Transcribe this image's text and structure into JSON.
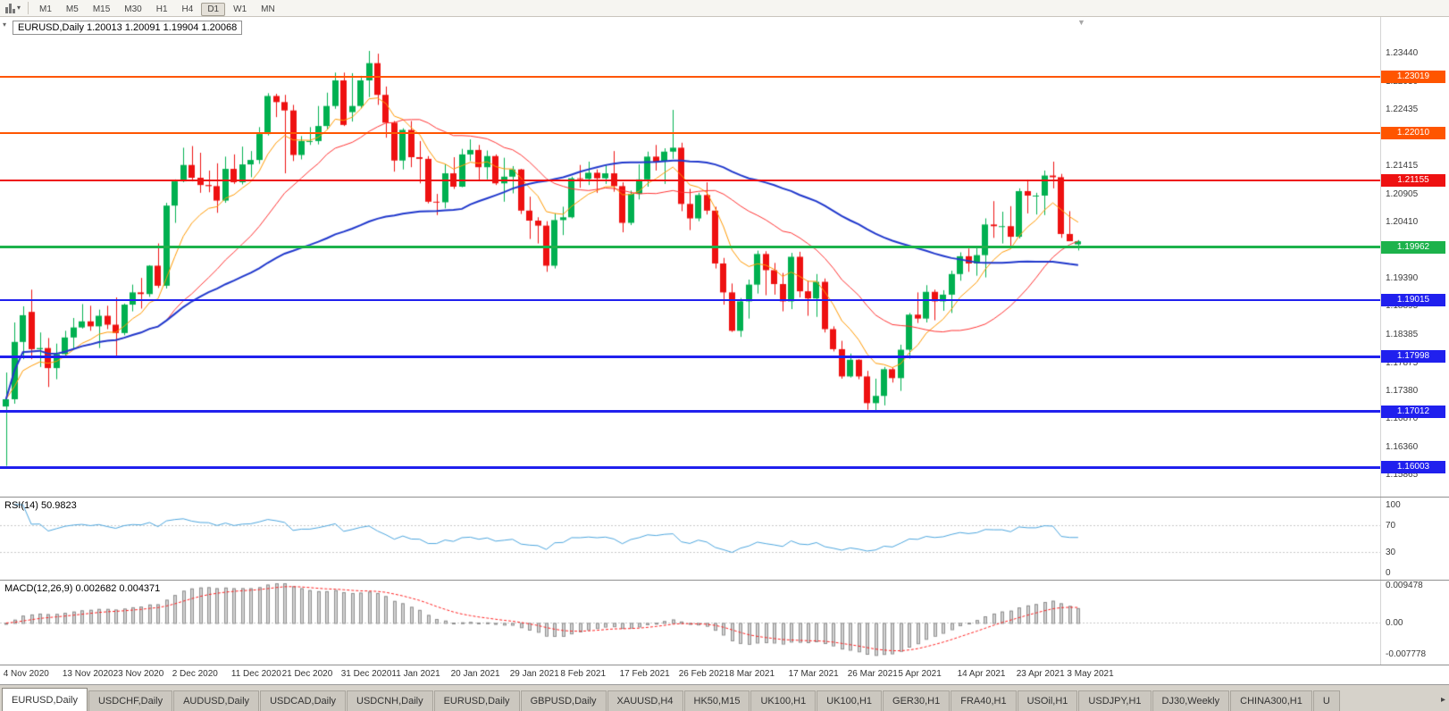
{
  "toolbar": {
    "timeframes": [
      "M1",
      "M5",
      "M15",
      "M30",
      "H1",
      "H4",
      "D1",
      "W1",
      "MN"
    ],
    "active_timeframe": "D1"
  },
  "chart": {
    "title": "EURUSD,Daily 1.20013 1.20091 1.19904 1.20068"
  },
  "rsi_panel": {
    "label": "RSI(14) 50.9823"
  },
  "macd_panel": {
    "label": "MACD(12,26,9) 0.002682 0.004371"
  },
  "tabs": {
    "items": [
      "EURUSD,Daily",
      "USDCHF,Daily",
      "AUDUSD,Daily",
      "USDCAD,Daily",
      "USDCNH,Daily",
      "EURUSD,Daily",
      "GBPUSD,Daily",
      "XAUUSD,H4",
      "HK50,M15",
      "UK100,H1",
      "UK100,H1",
      "GER30,H1",
      "FRA40,H1",
      "USOil,H1",
      "USDJPY,H1",
      "DJ30,Weekly",
      "CHINA300,H1",
      "U"
    ],
    "active_index": 0
  },
  "chart_data": {
    "type": "candlestick",
    "symbol": "EURUSD",
    "timeframe": "Daily",
    "current_bar": {
      "open": 1.20013,
      "high": 1.20091,
      "low": 1.19904,
      "close": 1.20068
    },
    "up_color": "#00B050",
    "down_color": "#EE1111",
    "y_range": [
      1.1548,
      1.241
    ],
    "y_ticks": [
      "1.23440",
      "1.22930",
      "1.22435",
      "1.21925",
      "1.21415",
      "1.20905",
      "1.20410",
      "1.19900",
      "1.19390",
      "1.18895",
      "1.18385",
      "1.17875",
      "1.17380",
      "1.16870",
      "1.16360",
      "1.15865"
    ],
    "x_ticks": [
      {
        "i": 0,
        "label": "4 Nov 2020"
      },
      {
        "i": 7,
        "label": "13 Nov 2020"
      },
      {
        "i": 13,
        "label": "23 Nov 2020"
      },
      {
        "i": 20,
        "label": "2 Dec 2020"
      },
      {
        "i": 27,
        "label": "11 Dec 2020"
      },
      {
        "i": 33,
        "label": "21 Dec 2020"
      },
      {
        "i": 40,
        "label": "31 Dec 2020"
      },
      {
        "i": 46,
        "label": "11 Jan 2021"
      },
      {
        "i": 53,
        "label": "20 Jan 2021"
      },
      {
        "i": 60,
        "label": "29 Jan 2021"
      },
      {
        "i": 66,
        "label": "8 Feb 2021"
      },
      {
        "i": 73,
        "label": "17 Feb 2021"
      },
      {
        "i": 80,
        "label": "26 Feb 2021"
      },
      {
        "i": 86,
        "label": "8 Mar 2021"
      },
      {
        "i": 93,
        "label": "17 Mar 2021"
      },
      {
        "i": 100,
        "label": "26 Mar 2021"
      },
      {
        "i": 106,
        "label": "5 Apr 2021"
      },
      {
        "i": 113,
        "label": "14 Apr 2021"
      },
      {
        "i": 120,
        "label": "23 Apr 2021"
      },
      {
        "i": 126,
        "label": "3 May 2021"
      }
    ],
    "hlines": [
      {
        "value": 1.23019,
        "label": "1.23019",
        "color": "#FF5500",
        "width": 2
      },
      {
        "value": 1.2201,
        "label": "1.22010",
        "color": "#FF5500",
        "width": 2
      },
      {
        "value": 1.21155,
        "label": "1.21155",
        "color": "#EE1111",
        "width": 2
      },
      {
        "value": 1.19962,
        "label": "1.19962",
        "color": "#1CB24B",
        "width": 3
      },
      {
        "value": 1.19015,
        "label": "1.19015",
        "color": "#2020EE",
        "width": 2
      },
      {
        "value": 1.17998,
        "label": "1.17998",
        "color": "#2020EE",
        "width": 3
      },
      {
        "value": 1.17012,
        "label": "1.17012",
        "color": "#2020EE",
        "width": 3
      },
      {
        "value": 1.16003,
        "label": "1.16003",
        "color": "#2020EE",
        "width": 3
      }
    ],
    "overlays": [
      {
        "name": "ma-fast",
        "type": "ema",
        "period": 8,
        "color": "#FF9900",
        "width": 1
      },
      {
        "name": "ma-mid",
        "type": "sma",
        "period": 20,
        "color": "#FF3333",
        "width": 1
      },
      {
        "name": "ma-slow",
        "type": "sma",
        "period": 55,
        "color": "#2038CC",
        "width": 2
      }
    ],
    "ohlc": [
      [
        1.171,
        1.1771,
        1.1603,
        1.1723
      ],
      [
        1.1723,
        1.1861,
        1.1715,
        1.1826
      ],
      [
        1.1826,
        1.189,
        1.1795,
        1.1874
      ],
      [
        1.188,
        1.192,
        1.1795,
        1.1813
      ],
      [
        1.1813,
        1.1843,
        1.1781,
        1.1815
      ],
      [
        1.1815,
        1.1833,
        1.1745,
        1.1779
      ],
      [
        1.1779,
        1.1823,
        1.1759,
        1.1804
      ],
      [
        1.1804,
        1.1846,
        1.1799,
        1.1834
      ],
      [
        1.1834,
        1.1869,
        1.1814,
        1.1852
      ],
      [
        1.1852,
        1.1894,
        1.185,
        1.1863
      ],
      [
        1.1863,
        1.1891,
        1.1846,
        1.1854
      ],
      [
        1.1854,
        1.1884,
        1.1815,
        1.1873
      ],
      [
        1.1873,
        1.1891,
        1.1849,
        1.1857
      ],
      [
        1.1857,
        1.1906,
        1.18,
        1.1842
      ],
      [
        1.1842,
        1.1895,
        1.1838,
        1.1893
      ],
      [
        1.1893,
        1.1929,
        1.1881,
        1.1915
      ],
      [
        1.1915,
        1.1941,
        1.1886,
        1.1912
      ],
      [
        1.1912,
        1.1964,
        1.1907,
        1.1963
      ],
      [
        1.1963,
        1.2003,
        1.1923,
        1.1927
      ],
      [
        1.1927,
        1.2076,
        1.1922,
        1.2071
      ],
      [
        1.2071,
        1.2118,
        1.204,
        1.2115
      ],
      [
        1.2115,
        1.2175,
        1.2113,
        1.2144
      ],
      [
        1.2144,
        1.2178,
        1.2115,
        1.2121
      ],
      [
        1.2121,
        1.2166,
        1.2094,
        1.2108
      ],
      [
        1.2108,
        1.2134,
        1.2095,
        1.2106
      ],
      [
        1.2106,
        1.2147,
        1.2058,
        1.208
      ],
      [
        1.208,
        1.2159,
        1.2076,
        1.2137
      ],
      [
        1.2137,
        1.2163,
        1.211,
        1.2113
      ],
      [
        1.2113,
        1.2177,
        1.2109,
        1.2145
      ],
      [
        1.2145,
        1.2169,
        1.2122,
        1.2153
      ],
      [
        1.2153,
        1.2212,
        1.2146,
        1.22
      ],
      [
        1.22,
        1.2273,
        1.2197,
        1.2268
      ],
      [
        1.2268,
        1.2272,
        1.223,
        1.2257
      ],
      [
        1.2257,
        1.227,
        1.2129,
        1.2242
      ],
      [
        1.2242,
        1.2252,
        1.2151,
        1.2162
      ],
      [
        1.2162,
        1.2196,
        1.2154,
        1.2187
      ],
      [
        1.2187,
        1.2212,
        1.218,
        1.2187
      ],
      [
        1.2187,
        1.225,
        1.2181,
        1.2214
      ],
      [
        1.2214,
        1.2274,
        1.2208,
        1.225
      ],
      [
        1.225,
        1.231,
        1.2245,
        1.2296
      ],
      [
        1.2296,
        1.231,
        1.2214,
        1.2216
      ],
      [
        1.2239,
        1.2309,
        1.2222,
        1.225
      ],
      [
        1.225,
        1.2304,
        1.2246,
        1.2296
      ],
      [
        1.2296,
        1.2349,
        1.2266,
        1.2327
      ],
      [
        1.2327,
        1.2344,
        1.2252,
        1.227
      ],
      [
        1.227,
        1.2285,
        1.2193,
        1.222
      ],
      [
        1.222,
        1.2223,
        1.2132,
        1.2152
      ],
      [
        1.2152,
        1.221,
        1.2136,
        1.2207
      ],
      [
        1.2207,
        1.2223,
        1.214,
        1.2158
      ],
      [
        1.2158,
        1.2187,
        1.2111,
        1.2155
      ],
      [
        1.2155,
        1.216,
        1.2075,
        1.2078
      ],
      [
        1.2078,
        1.2092,
        1.2054,
        1.2077
      ],
      [
        1.2077,
        1.2145,
        1.2066,
        1.2129
      ],
      [
        1.2129,
        1.2158,
        1.2101,
        1.2105
      ],
      [
        1.2105,
        1.2173,
        1.2104,
        1.2163
      ],
      [
        1.2163,
        1.219,
        1.2151,
        1.2171
      ],
      [
        1.2171,
        1.218,
        1.2116,
        1.214
      ],
      [
        1.214,
        1.217,
        1.2118,
        1.216
      ],
      [
        1.216,
        1.2163,
        1.2108,
        1.2111
      ],
      [
        1.2111,
        1.2157,
        1.2078,
        1.2123
      ],
      [
        1.2123,
        1.2142,
        1.2093,
        1.2136
      ],
      [
        1.2136,
        1.2137,
        1.2056,
        1.2062
      ],
      [
        1.2062,
        1.2087,
        1.2011,
        1.2044
      ],
      [
        1.2044,
        1.205,
        1.2003,
        1.2035
      ],
      [
        1.2035,
        1.2043,
        1.1952,
        1.1963
      ],
      [
        1.1963,
        1.2057,
        1.1958,
        1.2045
      ],
      [
        1.2045,
        1.2069,
        1.2018,
        1.205
      ],
      [
        1.205,
        1.2123,
        1.2048,
        1.212
      ],
      [
        1.212,
        1.2144,
        1.2103,
        1.2119
      ],
      [
        1.2119,
        1.215,
        1.2108,
        1.213
      ],
      [
        1.213,
        1.2136,
        1.2094,
        1.212
      ],
      [
        1.212,
        1.2144,
        1.211,
        1.2129
      ],
      [
        1.2129,
        1.2169,
        1.2096,
        1.2106
      ],
      [
        1.2106,
        1.2113,
        1.2023,
        1.204
      ],
      [
        1.204,
        1.2098,
        1.2036,
        1.2092
      ],
      [
        1.2092,
        1.2145,
        1.2082,
        1.2118
      ],
      [
        1.2118,
        1.2168,
        1.2105,
        1.2159
      ],
      [
        1.2159,
        1.218,
        1.2134,
        1.215
      ],
      [
        1.215,
        1.2174,
        1.211,
        1.2168
      ],
      [
        1.2168,
        1.2243,
        1.2155,
        1.2175
      ],
      [
        1.2175,
        1.2184,
        1.2061,
        1.2074
      ],
      [
        1.2074,
        1.2101,
        1.2027,
        1.2048
      ],
      [
        1.2048,
        1.2094,
        1.2043,
        1.209
      ],
      [
        1.209,
        1.2113,
        1.2055,
        1.2062
      ],
      [
        1.2062,
        1.2069,
        1.1958,
        1.1967
      ],
      [
        1.1967,
        1.1977,
        1.1893,
        1.1915
      ],
      [
        1.1915,
        1.1931,
        1.1844,
        1.1846
      ],
      [
        1.1846,
        1.1905,
        1.1835,
        1.1899
      ],
      [
        1.1899,
        1.1938,
        1.1868,
        1.1929
      ],
      [
        1.1929,
        1.199,
        1.1913,
        1.1984
      ],
      [
        1.1984,
        1.1989,
        1.191,
        1.1955
      ],
      [
        1.1955,
        1.1968,
        1.1911,
        1.193
      ],
      [
        1.193,
        1.195,
        1.1881,
        1.1899
      ],
      [
        1.1899,
        1.1986,
        1.1885,
        1.1979
      ],
      [
        1.1979,
        1.1988,
        1.1906,
        1.1917
      ],
      [
        1.1917,
        1.1936,
        1.1873,
        1.1904
      ],
      [
        1.1904,
        1.1948,
        1.1871,
        1.1934
      ],
      [
        1.1934,
        1.194,
        1.1843,
        1.1849
      ],
      [
        1.1849,
        1.1854,
        1.1809,
        1.1813
      ],
      [
        1.1813,
        1.1828,
        1.176,
        1.1764
      ],
      [
        1.1764,
        1.1805,
        1.1762,
        1.1794
      ],
      [
        1.1794,
        1.1795,
        1.1759,
        1.1764
      ],
      [
        1.1764,
        1.1774,
        1.1704,
        1.1716
      ],
      [
        1.1716,
        1.176,
        1.1702,
        1.1729
      ],
      [
        1.1729,
        1.1781,
        1.1712,
        1.1777
      ],
      [
        1.1777,
        1.178,
        1.1753,
        1.1761
      ],
      [
        1.1761,
        1.1821,
        1.1738,
        1.1812
      ],
      [
        1.1812,
        1.1878,
        1.1796,
        1.1875
      ],
      [
        1.1875,
        1.1915,
        1.186,
        1.1868
      ],
      [
        1.1868,
        1.1928,
        1.1861,
        1.1916
      ],
      [
        1.1916,
        1.192,
        1.1865,
        1.1899
      ],
      [
        1.1899,
        1.1919,
        1.1882,
        1.1911
      ],
      [
        1.1911,
        1.1954,
        1.1878,
        1.1948
      ],
      [
        1.1948,
        1.1987,
        1.1936,
        1.198
      ],
      [
        1.198,
        1.1994,
        1.1952,
        1.1967
      ],
      [
        1.1967,
        1.1996,
        1.1945,
        1.1982
      ],
      [
        1.1982,
        1.2048,
        1.1942,
        1.2037
      ],
      [
        1.2037,
        1.2079,
        1.2013,
        1.2034
      ],
      [
        1.2034,
        1.206,
        1.2003,
        1.2034
      ],
      [
        1.2034,
        1.207,
        1.1994,
        1.2015
      ],
      [
        1.2015,
        1.2102,
        1.2012,
        1.2097
      ],
      [
        1.2097,
        1.2117,
        1.2057,
        1.2089
      ],
      [
        1.2089,
        1.2094,
        1.2055,
        1.2089
      ],
      [
        1.2089,
        1.2134,
        1.2054,
        1.2125
      ],
      [
        1.2125,
        1.215,
        1.2102,
        1.2122
      ],
      [
        1.2122,
        1.2128,
        1.2013,
        1.202
      ],
      [
        1.202,
        1.2061,
        1.2013,
        1.2007
      ],
      [
        1.20013,
        1.20091,
        1.19904,
        1.20068
      ]
    ],
    "rsi": {
      "period": 14,
      "current": 50.9823,
      "color": "#4DA6DE",
      "levels": [
        70,
        30
      ],
      "y_ticks": [
        "100",
        "70",
        "30",
        "0"
      ],
      "y_range": [
        0,
        100
      ]
    },
    "macd": {
      "fast": 12,
      "slow": 26,
      "signal": 9,
      "current_main": 0.002682,
      "current_signal": 0.004371,
      "histogram_color": "#D2D2D2",
      "histogram_border": "#8F8F8F",
      "signal_color": "#FF2222",
      "y_ticks": [
        {
          "v": 0.009478,
          "label": "0.009478"
        },
        {
          "v": 0,
          "label": "0.00"
        },
        {
          "v": -0.007778,
          "label": "-0.007778"
        }
      ],
      "y_range": [
        -0.0104,
        0.0106
      ]
    }
  }
}
